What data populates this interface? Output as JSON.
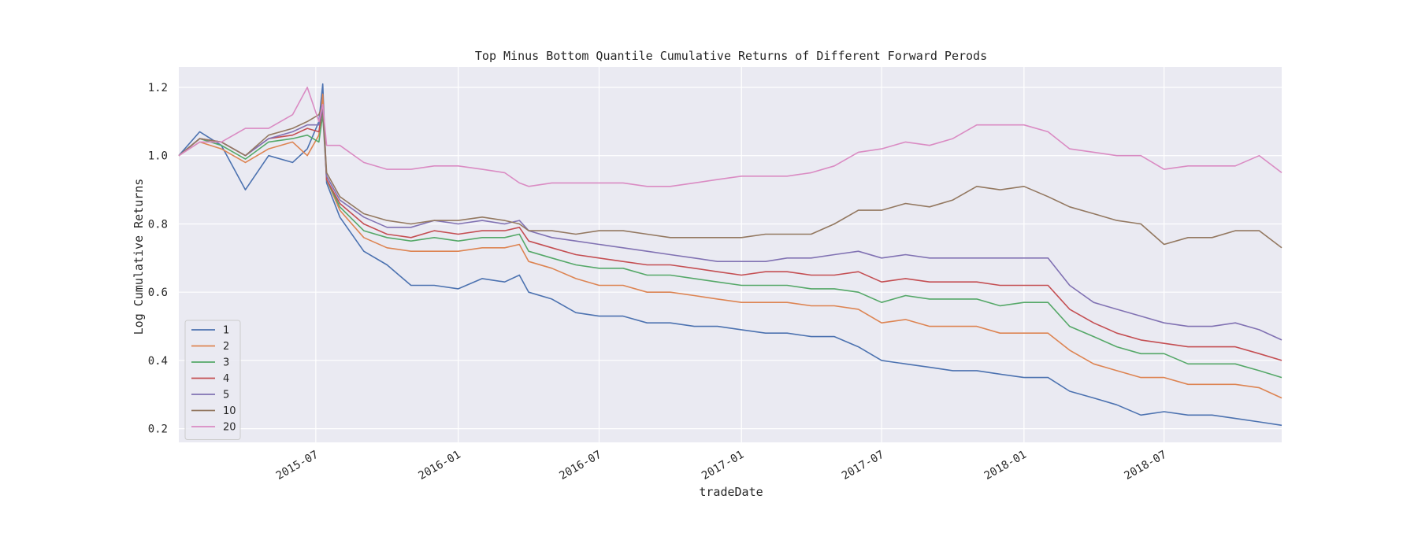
{
  "chart_data": {
    "type": "line",
    "title": "Top Minus Bottom Quantile Cumulative Returns of Different Forward Perods",
    "xlabel": "tradeDate",
    "ylabel": "Log Cumulative Returns",
    "xlim": [
      "2015-01-05",
      "2018-11-30"
    ],
    "ylim": [
      0.16,
      1.26
    ],
    "x_ticks": [
      "2015-07",
      "2016-01",
      "2016-07",
      "2017-01",
      "2017-07",
      "2018-01",
      "2018-07"
    ],
    "y_ticks": [
      "0.2",
      "0.4",
      "0.6",
      "0.8",
      "1.0",
      "1.2"
    ],
    "grid": true,
    "legend_position": "lower-left",
    "x": [
      "2015-01-05",
      "2015-02-01",
      "2015-03-01",
      "2015-04-01",
      "2015-05-01",
      "2015-06-01",
      "2015-06-20",
      "2015-07-05",
      "2015-07-10",
      "2015-07-15",
      "2015-08-01",
      "2015-09-01",
      "2015-10-01",
      "2015-11-01",
      "2015-12-01",
      "2016-01-01",
      "2016-02-01",
      "2016-03-01",
      "2016-03-20",
      "2016-04-01",
      "2016-05-01",
      "2016-06-01",
      "2016-07-01",
      "2016-08-01",
      "2016-09-01",
      "2016-10-01",
      "2016-11-01",
      "2016-12-01",
      "2017-01-01",
      "2017-02-01",
      "2017-03-01",
      "2017-04-01",
      "2017-05-01",
      "2017-06-01",
      "2017-07-01",
      "2017-08-01",
      "2017-09-01",
      "2017-10-01",
      "2017-11-01",
      "2017-12-01",
      "2018-01-01",
      "2018-02-01",
      "2018-03-01",
      "2018-04-01",
      "2018-05-01",
      "2018-06-01",
      "2018-07-01",
      "2018-08-01",
      "2018-09-01",
      "2018-10-01",
      "2018-11-01",
      "2018-11-30"
    ],
    "series": [
      {
        "name": "1",
        "color": "#4c72b0",
        "values": [
          1.0,
          1.07,
          1.03,
          0.9,
          1.0,
          0.98,
          1.02,
          1.1,
          1.21,
          0.92,
          0.82,
          0.72,
          0.68,
          0.62,
          0.62,
          0.61,
          0.64,
          0.63,
          0.65,
          0.6,
          0.58,
          0.54,
          0.53,
          0.53,
          0.51,
          0.51,
          0.5,
          0.5,
          0.49,
          0.48,
          0.48,
          0.47,
          0.47,
          0.44,
          0.4,
          0.39,
          0.38,
          0.37,
          0.37,
          0.36,
          0.35,
          0.35,
          0.31,
          0.29,
          0.27,
          0.24,
          0.25,
          0.24,
          0.24,
          0.23,
          0.22,
          0.21
        ]
      },
      {
        "name": "2",
        "color": "#dd8452",
        "values": [
          1.0,
          1.04,
          1.02,
          0.98,
          1.02,
          1.04,
          1.0,
          1.06,
          1.18,
          0.93,
          0.84,
          0.76,
          0.73,
          0.72,
          0.72,
          0.72,
          0.73,
          0.73,
          0.74,
          0.69,
          0.67,
          0.64,
          0.62,
          0.62,
          0.6,
          0.6,
          0.59,
          0.58,
          0.57,
          0.57,
          0.57,
          0.56,
          0.56,
          0.55,
          0.51,
          0.52,
          0.5,
          0.5,
          0.5,
          0.48,
          0.48,
          0.48,
          0.43,
          0.39,
          0.37,
          0.35,
          0.35,
          0.33,
          0.33,
          0.33,
          0.32,
          0.29
        ]
      },
      {
        "name": "3",
        "color": "#55a868",
        "values": [
          1.0,
          1.05,
          1.03,
          0.99,
          1.04,
          1.05,
          1.06,
          1.04,
          1.12,
          0.93,
          0.85,
          0.78,
          0.76,
          0.75,
          0.76,
          0.75,
          0.76,
          0.76,
          0.77,
          0.72,
          0.7,
          0.68,
          0.67,
          0.67,
          0.65,
          0.65,
          0.64,
          0.63,
          0.62,
          0.62,
          0.62,
          0.61,
          0.61,
          0.6,
          0.57,
          0.59,
          0.58,
          0.58,
          0.58,
          0.56,
          0.57,
          0.57,
          0.5,
          0.47,
          0.44,
          0.42,
          0.42,
          0.39,
          0.39,
          0.39,
          0.37,
          0.35
        ]
      },
      {
        "name": "4",
        "color": "#c44e52",
        "values": [
          1.0,
          1.05,
          1.04,
          1.0,
          1.05,
          1.06,
          1.08,
          1.07,
          1.14,
          0.93,
          0.86,
          0.8,
          0.77,
          0.76,
          0.78,
          0.77,
          0.78,
          0.78,
          0.79,
          0.75,
          0.73,
          0.71,
          0.7,
          0.69,
          0.68,
          0.68,
          0.67,
          0.66,
          0.65,
          0.66,
          0.66,
          0.65,
          0.65,
          0.66,
          0.63,
          0.64,
          0.63,
          0.63,
          0.63,
          0.62,
          0.62,
          0.62,
          0.55,
          0.51,
          0.48,
          0.46,
          0.45,
          0.44,
          0.44,
          0.44,
          0.42,
          0.4
        ]
      },
      {
        "name": "5",
        "color": "#8172b3",
        "values": [
          1.0,
          1.05,
          1.04,
          1.0,
          1.05,
          1.07,
          1.09,
          1.09,
          1.14,
          0.94,
          0.87,
          0.82,
          0.79,
          0.79,
          0.81,
          0.8,
          0.81,
          0.8,
          0.81,
          0.78,
          0.76,
          0.75,
          0.74,
          0.73,
          0.72,
          0.71,
          0.7,
          0.69,
          0.69,
          0.69,
          0.7,
          0.7,
          0.71,
          0.72,
          0.7,
          0.71,
          0.7,
          0.7,
          0.7,
          0.7,
          0.7,
          0.7,
          0.62,
          0.57,
          0.55,
          0.53,
          0.51,
          0.5,
          0.5,
          0.51,
          0.49,
          0.46
        ]
      },
      {
        "name": "10",
        "color": "#937860",
        "values": [
          1.0,
          1.05,
          1.04,
          1.0,
          1.06,
          1.08,
          1.1,
          1.12,
          1.15,
          0.95,
          0.88,
          0.83,
          0.81,
          0.8,
          0.81,
          0.81,
          0.82,
          0.81,
          0.8,
          0.78,
          0.78,
          0.77,
          0.78,
          0.78,
          0.77,
          0.76,
          0.76,
          0.76,
          0.76,
          0.77,
          0.77,
          0.77,
          0.8,
          0.84,
          0.84,
          0.86,
          0.85,
          0.87,
          0.91,
          0.9,
          0.91,
          0.88,
          0.85,
          0.83,
          0.81,
          0.8,
          0.74,
          0.76,
          0.76,
          0.78,
          0.78,
          0.73
        ]
      },
      {
        "name": "20",
        "color": "#da8bc3",
        "values": [
          1.0,
          1.04,
          1.04,
          1.08,
          1.08,
          1.12,
          1.2,
          1.1,
          1.15,
          1.03,
          1.03,
          0.98,
          0.96,
          0.96,
          0.97,
          0.97,
          0.96,
          0.95,
          0.92,
          0.91,
          0.92,
          0.92,
          0.92,
          0.92,
          0.91,
          0.91,
          0.92,
          0.93,
          0.94,
          0.94,
          0.94,
          0.95,
          0.97,
          1.01,
          1.02,
          1.04,
          1.03,
          1.05,
          1.09,
          1.09,
          1.09,
          1.07,
          1.02,
          1.01,
          1.0,
          1.0,
          0.96,
          0.97,
          0.97,
          0.97,
          1.0,
          0.95
        ]
      }
    ]
  }
}
